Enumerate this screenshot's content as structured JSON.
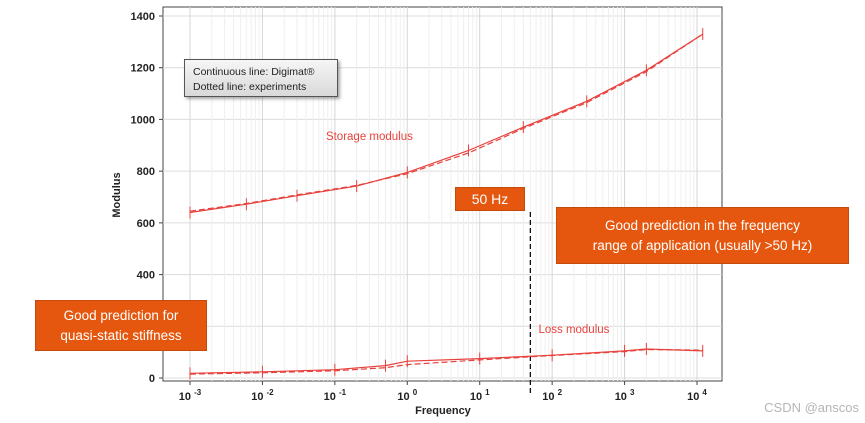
{
  "chart_data": {
    "type": "line",
    "xscale": "log",
    "xlabel": "Frequency",
    "ylabel": "Modulus",
    "ylim": [
      0,
      1400
    ],
    "yticks": [
      0,
      200,
      400,
      600,
      800,
      1000,
      1200,
      1400
    ],
    "xticks": [
      {
        "value": 0.001,
        "base": "10",
        "exp": "-3"
      },
      {
        "value": 0.01,
        "base": "10",
        "exp": "-2"
      },
      {
        "value": 0.1,
        "base": "10",
        "exp": "-1"
      },
      {
        "value": 1,
        "base": "10",
        "exp": "0"
      },
      {
        "value": 10,
        "base": "10",
        "exp": "1"
      },
      {
        "value": 100,
        "base": "10",
        "exp": "2"
      },
      {
        "value": 1000,
        "base": "10",
        "exp": "3"
      },
      {
        "value": 10000,
        "base": "10",
        "exp": "4"
      }
    ],
    "grid": true,
    "series": [
      {
        "name": "Storage modulus (Digimat)",
        "style": "solid",
        "color": "#e8413c",
        "x": [
          0.001,
          0.006,
          0.03,
          0.2,
          1,
          7,
          40,
          300,
          2000,
          12000
        ],
        "y": [
          640,
          672,
          705,
          742,
          795,
          880,
          970,
          1070,
          1190,
          1330
        ]
      },
      {
        "name": "Storage modulus (experiments)",
        "style": "dashed",
        "color": "#e8413c",
        "x": [
          0.001,
          0.006,
          0.03,
          0.2,
          1,
          7,
          40,
          300,
          2000,
          12000
        ],
        "y": [
          645,
          675,
          708,
          745,
          790,
          870,
          965,
          1065,
          1185,
          1330
        ]
      },
      {
        "name": "Loss modulus (Digimat)",
        "style": "solid",
        "color": "#e8413c",
        "x": [
          0.001,
          0.01,
          0.1,
          0.5,
          1,
          10,
          100,
          1000,
          2000,
          12000
        ],
        "y": [
          18,
          24,
          32,
          48,
          65,
          75,
          88,
          105,
          112,
          105
        ]
      },
      {
        "name": "Loss modulus (experiments)",
        "style": "dashed",
        "color": "#e8413c",
        "x": [
          0.001,
          0.01,
          0.1,
          0.5,
          1,
          10,
          100,
          1000,
          2000,
          12000
        ],
        "y": [
          15,
          20,
          28,
          40,
          52,
          70,
          87,
          102,
          110,
          108
        ]
      }
    ],
    "series_labels": [
      {
        "text": "Storage modulus",
        "x": 0.3,
        "y": 920
      },
      {
        "text": "Loss modulus",
        "x": 200,
        "y": 175
      }
    ],
    "marker_line": {
      "label": "50 Hz",
      "x": 50
    }
  },
  "legend": {
    "line1": "Continuous line: Digimat®",
    "line2": "Dotted line: experiments"
  },
  "callouts": {
    "fifty_hz": "50 Hz",
    "freq_line1": "Good prediction in the frequency",
    "freq_line2": "range of application (usually >50 Hz)",
    "static_line1": "Good prediction for",
    "static_line2": "quasi-static stiffness"
  },
  "watermark": "CSDN @anscos",
  "colors": {
    "curve": "#e8413c",
    "callout": "#e5570e"
  }
}
